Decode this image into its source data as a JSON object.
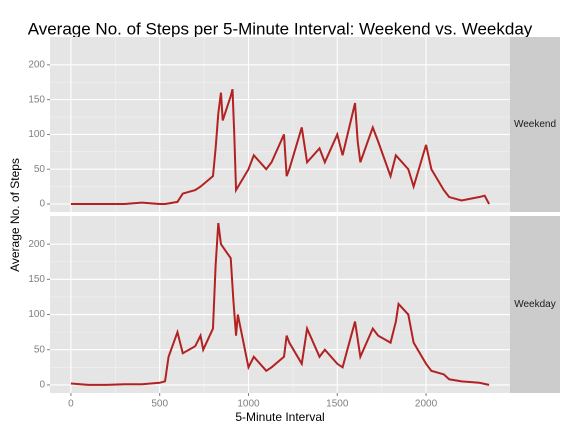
{
  "chart_data": {
    "type": "line",
    "title": "Average No. of Steps per 5-Minute Interval: Weekend vs. Weekday",
    "x_label": "5-Minute Interval",
    "y_label": "Average No. of Steps",
    "xlim": [
      -117.75,
      2472.75
    ],
    "xticks": [
      0,
      500,
      1000,
      1500,
      2000
    ],
    "ylim": [
      -11.5,
      240
    ],
    "yticks": [
      0,
      50,
      100,
      150,
      200
    ],
    "grid": true,
    "series": [
      {
        "name": "Weekend",
        "color": "#b22222",
        "x": [
          0,
          100,
          200,
          300,
          400,
          500,
          530,
          600,
          630,
          700,
          730,
          800,
          815,
          830,
          845,
          855,
          900,
          910,
          920,
          930,
          1000,
          1030,
          1100,
          1130,
          1200,
          1215,
          1230,
          1300,
          1330,
          1400,
          1430,
          1500,
          1530,
          1600,
          1615,
          1630,
          1700,
          1730,
          1800,
          1830,
          1900,
          1930,
          2000,
          2030,
          2100,
          2130,
          2200,
          2300,
          2330,
          2355
        ],
        "values": [
          0,
          0,
          0,
          0,
          2,
          0,
          0,
          3,
          15,
          20,
          25,
          40,
          80,
          130,
          160,
          120,
          155,
          165,
          100,
          20,
          50,
          70,
          50,
          60,
          100,
          40,
          50,
          110,
          60,
          80,
          60,
          100,
          70,
          145,
          90,
          60,
          110,
          90,
          40,
          70,
          50,
          25,
          85,
          50,
          20,
          10,
          5,
          10,
          12,
          0
        ]
      },
      {
        "name": "Weekday",
        "color": "#b22222",
        "x": [
          0,
          100,
          200,
          300,
          400,
          500,
          530,
          550,
          600,
          630,
          700,
          730,
          745,
          800,
          815,
          830,
          845,
          900,
          915,
          930,
          940,
          1000,
          1030,
          1100,
          1130,
          1200,
          1215,
          1230,
          1300,
          1330,
          1400,
          1430,
          1500,
          1530,
          1600,
          1630,
          1700,
          1730,
          1800,
          1830,
          1845,
          1900,
          1930,
          2000,
          2030,
          2100,
          2130,
          2200,
          2300,
          2355
        ],
        "values": [
          2,
          0,
          0,
          1,
          1,
          3,
          5,
          40,
          75,
          45,
          55,
          70,
          50,
          80,
          170,
          230,
          200,
          180,
          120,
          70,
          100,
          25,
          40,
          20,
          25,
          40,
          70,
          60,
          30,
          80,
          40,
          50,
          30,
          25,
          90,
          40,
          80,
          70,
          60,
          90,
          115,
          100,
          60,
          30,
          20,
          15,
          8,
          5,
          3,
          0
        ]
      }
    ]
  }
}
